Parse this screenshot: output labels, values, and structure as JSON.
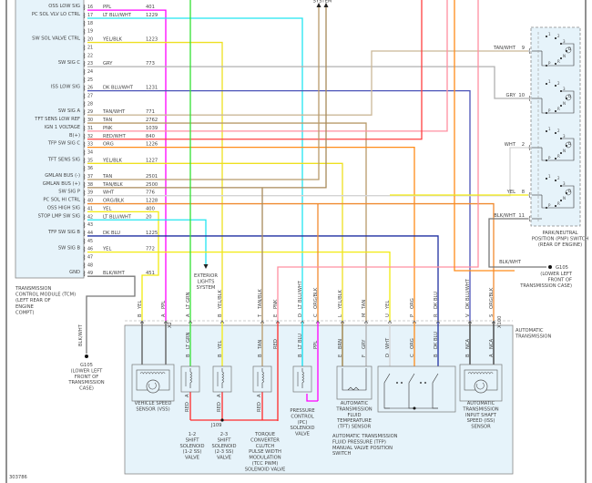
{
  "figure_id": "303786",
  "wire_colors": {
    "PPL": "#ff00ff",
    "LT BLU/WHT": "#22e5f0",
    "YEL/BLK": "#eee020",
    "GRY": "#b0b0b0",
    "DK BLU/WHT": "#4a52b8",
    "TAN/WHT": "#cbb898",
    "TAN": "#b89a6a",
    "PNK": "#ff8fa0",
    "RED/WHT": "#ff4040",
    "ORG": "#ff8c1a",
    "TAN/BLK": "#a88a5a",
    "WHT": "#d4d4d4",
    "ORG/BLK": "#f08a30",
    "YEL": "#f2ea10",
    "DK BLU": "#1f2fa0",
    "BLK/WHT": "#777777",
    "LT GRN": "#33e033",
    "RED": "#ff2a2a",
    "LT BLU": "#10e0f0",
    "BRN": "#9a7a3a",
    "NCA": "#333333"
  },
  "tcm": {
    "label": [
      "TRANSMISSION",
      "CONTROL MODULE (TCM)",
      "(LEFT REAR OF",
      "ENGINE",
      "COMPT)"
    ],
    "pins": [
      {
        "pin": "16",
        "signal": "OSS LOW SIG",
        "wire": "PPL",
        "circuit": "401"
      },
      {
        "pin": "17",
        "signal": "PC SOL VLV LO CTRL",
        "wire": "LT BLU/WHT",
        "circuit": "1229"
      },
      {
        "pin": "18"
      },
      {
        "pin": "19"
      },
      {
        "pin": "20",
        "signal": "SW SOL VALVE CTRL",
        "wire": "YEL/BLK",
        "circuit": "1223"
      },
      {
        "pin": "21"
      },
      {
        "pin": "22"
      },
      {
        "pin": "23",
        "signal": "SW SIG C",
        "wire": "GRY",
        "circuit": "773"
      },
      {
        "pin": "24"
      },
      {
        "pin": "25"
      },
      {
        "pin": "26",
        "signal": "ISS LOW SIG",
        "wire": "DK BLU/WHT",
        "circuit": "1231"
      },
      {
        "pin": "27"
      },
      {
        "pin": "28"
      },
      {
        "pin": "29",
        "signal": "SW SIG A",
        "wire": "TAN/WHT",
        "circuit": "771"
      },
      {
        "pin": "30",
        "signal": "TFT SENS LOW REF",
        "wire": "TAN",
        "circuit": "2762"
      },
      {
        "pin": "31",
        "signal": "IGN 1 VOLTAGE",
        "wire": "PNK",
        "circuit": "1039"
      },
      {
        "pin": "32",
        "signal": "B(+)",
        "wire": "RED/WHT",
        "circuit": "840"
      },
      {
        "pin": "33",
        "signal": "TFP SW SIG C",
        "wire": "ORG",
        "circuit": "1226"
      },
      {
        "pin": "34"
      },
      {
        "pin": "35",
        "signal": "TFT SENS SIG",
        "wire": "YEL/BLK",
        "circuit": "1227"
      },
      {
        "pin": "36"
      },
      {
        "pin": "37",
        "signal": "GMLAN BUS (-)",
        "wire": "TAN",
        "circuit": "2501"
      },
      {
        "pin": "38",
        "signal": "GMLAN BUS (+)",
        "wire": "TAN/BLK",
        "circuit": "2500"
      },
      {
        "pin": "39",
        "signal": "SW SIG P",
        "wire": "WHT",
        "circuit": "776"
      },
      {
        "pin": "40",
        "signal": "PC SOL HI CTRL",
        "wire": "ORG/BLK",
        "circuit": "1228"
      },
      {
        "pin": "41",
        "signal": "OSS HIGH SIG",
        "wire": "YEL",
        "circuit": "400"
      },
      {
        "pin": "42",
        "signal": "STOP LMP SW SIG",
        "wire": "LT BLU/WHT",
        "circuit": "20"
      },
      {
        "pin": "43"
      },
      {
        "pin": "44",
        "signal": "TFP SW SIG B",
        "wire": "DK BLU",
        "circuit": "1225"
      },
      {
        "pin": "45"
      },
      {
        "pin": "46",
        "signal": "SW SIG B",
        "wire": "YEL",
        "circuit": "772"
      },
      {
        "pin": "47"
      },
      {
        "pin": "48"
      },
      {
        "pin": "49",
        "signal": "GND",
        "wire": "BLK/WHT",
        "circuit": "451"
      }
    ]
  },
  "top_label": "SYSTEM",
  "exterior_lights": [
    "EXTERIOR",
    "LIGHTS",
    "SYSTEM"
  ],
  "ground_left": {
    "wire": "BLK/WHT",
    "label": [
      "G105",
      "(LOWER LEFT",
      "FRONT OF",
      "TRANSMISSION",
      "CASE)"
    ]
  },
  "ground_right": {
    "wire": "BLK/WHT",
    "id": "G105",
    "label": [
      "(LOWER LEFT",
      "FRONT OF",
      "TRANSMISSION CASE)"
    ]
  },
  "pnp": {
    "label": [
      "PARK/NEUTRAL",
      "POSITION (PNP) SWITCH",
      "(REAR OF ENGINE)"
    ],
    "terminals": [
      {
        "wire": "TAN/WHT",
        "pin": "9"
      },
      {
        "wire": "GRY",
        "pin": "10"
      },
      {
        "wire": "WHT",
        "pin": "2"
      },
      {
        "wire": "YEL",
        "pin": "8"
      },
      {
        "wire": "BLK/WHT",
        "pin": "11"
      }
    ],
    "positions": [
      "1",
      "2",
      "3",
      "D",
      "N",
      "P",
      "R"
    ]
  },
  "transmission": {
    "title": [
      "AUTOMATIC",
      "TRANSMISSION"
    ],
    "connector_x2": "X2",
    "connector_x100": "X100",
    "connector_pins": [
      {
        "pin": "B",
        "wire": "YEL"
      },
      {
        "pin": "A",
        "wire": "PPL"
      },
      {
        "pin": "A",
        "wire": "LT GRN"
      },
      {
        "pin": "B",
        "wire": "YEL/BLK"
      },
      {
        "pin": "T",
        "wire": "TAN/BLK"
      },
      {
        "pin": "E",
        "wire": "PNK"
      },
      {
        "pin": "D",
        "wire": "LT BLU/WHT"
      },
      {
        "pin": "C",
        "wire": "ORG/BLK"
      },
      {
        "pin": "L",
        "wire": "YEL/BLK"
      },
      {
        "pin": "M",
        "wire": "TAN"
      },
      {
        "pin": "U",
        "wire": "YEL"
      },
      {
        "pin": "P",
        "wire": "ORG"
      },
      {
        "pin": "R",
        "wire": "DK BLU"
      },
      {
        "pin": "V",
        "wire": "DK BLU/WHT"
      },
      {
        "pin": "S",
        "wire": "ORG/BLK"
      }
    ],
    "internal_wires": [
      {
        "pin": "",
        "wire": ""
      },
      {
        "pin": "",
        "wire": ""
      },
      {
        "pin": "B",
        "wire": "LT GRN"
      },
      {
        "pin": "B",
        "wire": "YEL"
      },
      {
        "pin": "B",
        "wire": "TAN"
      },
      {
        "pin": "",
        "wire": "RED"
      },
      {
        "pin": "B",
        "wire": "LT BLU"
      },
      {
        "pin": "",
        "wire": "PPL"
      },
      {
        "pin": "E",
        "wire": "BRN"
      },
      {
        "pin": "F",
        "wire": "GRY"
      },
      {
        "pin": "D",
        "wire": "WHT"
      },
      {
        "pin": "C",
        "wire": "ORG"
      },
      {
        "pin": "B",
        "wire": "DK BLU"
      },
      {
        "pin": "B",
        "wire": "NCA"
      },
      {
        "pin": "A",
        "wire": "NCA"
      }
    ],
    "solenoid_return": {
      "pin": "A",
      "wire": "RED"
    },
    "splice": "J109",
    "components": {
      "vss": [
        "VEHICLE SPEED",
        "SENSOR (VSS)"
      ],
      "ss12": [
        "1-2",
        "SHIFT",
        "SOLENOID",
        "(1-2 SS)",
        "VALVE"
      ],
      "ss23": [
        "2-3",
        "SHIFT",
        "SOLENOID",
        "(2-3 SS)",
        "VALVE"
      ],
      "tcc": [
        "TORQUE",
        "CONVERTER",
        "CLUTCH",
        "PULSE WIDTH",
        "MODULATION",
        "(TCC PWM)",
        "SOLENOID VALVE"
      ],
      "pc": [
        "PRESSURE",
        "CONTROL",
        "(PC)",
        "SOLENOID",
        "VALVE"
      ],
      "tft": [
        "AUTOMATIC",
        "TRANSMISSION",
        "FLUID",
        "TEMPERATURE",
        "(TFT) SENSOR"
      ],
      "tfp": [
        "AUTOMATIC TRANSMISSION",
        "FLUID PRESSURE (TFP)",
        "MANUAL VALVE POSITION",
        "SWITCH"
      ],
      "iss": [
        "AUTOMATIC",
        "TRANSMISSION",
        "INPUT SHAFT",
        "SPEED (ISS)",
        "SENSOR"
      ]
    }
  }
}
